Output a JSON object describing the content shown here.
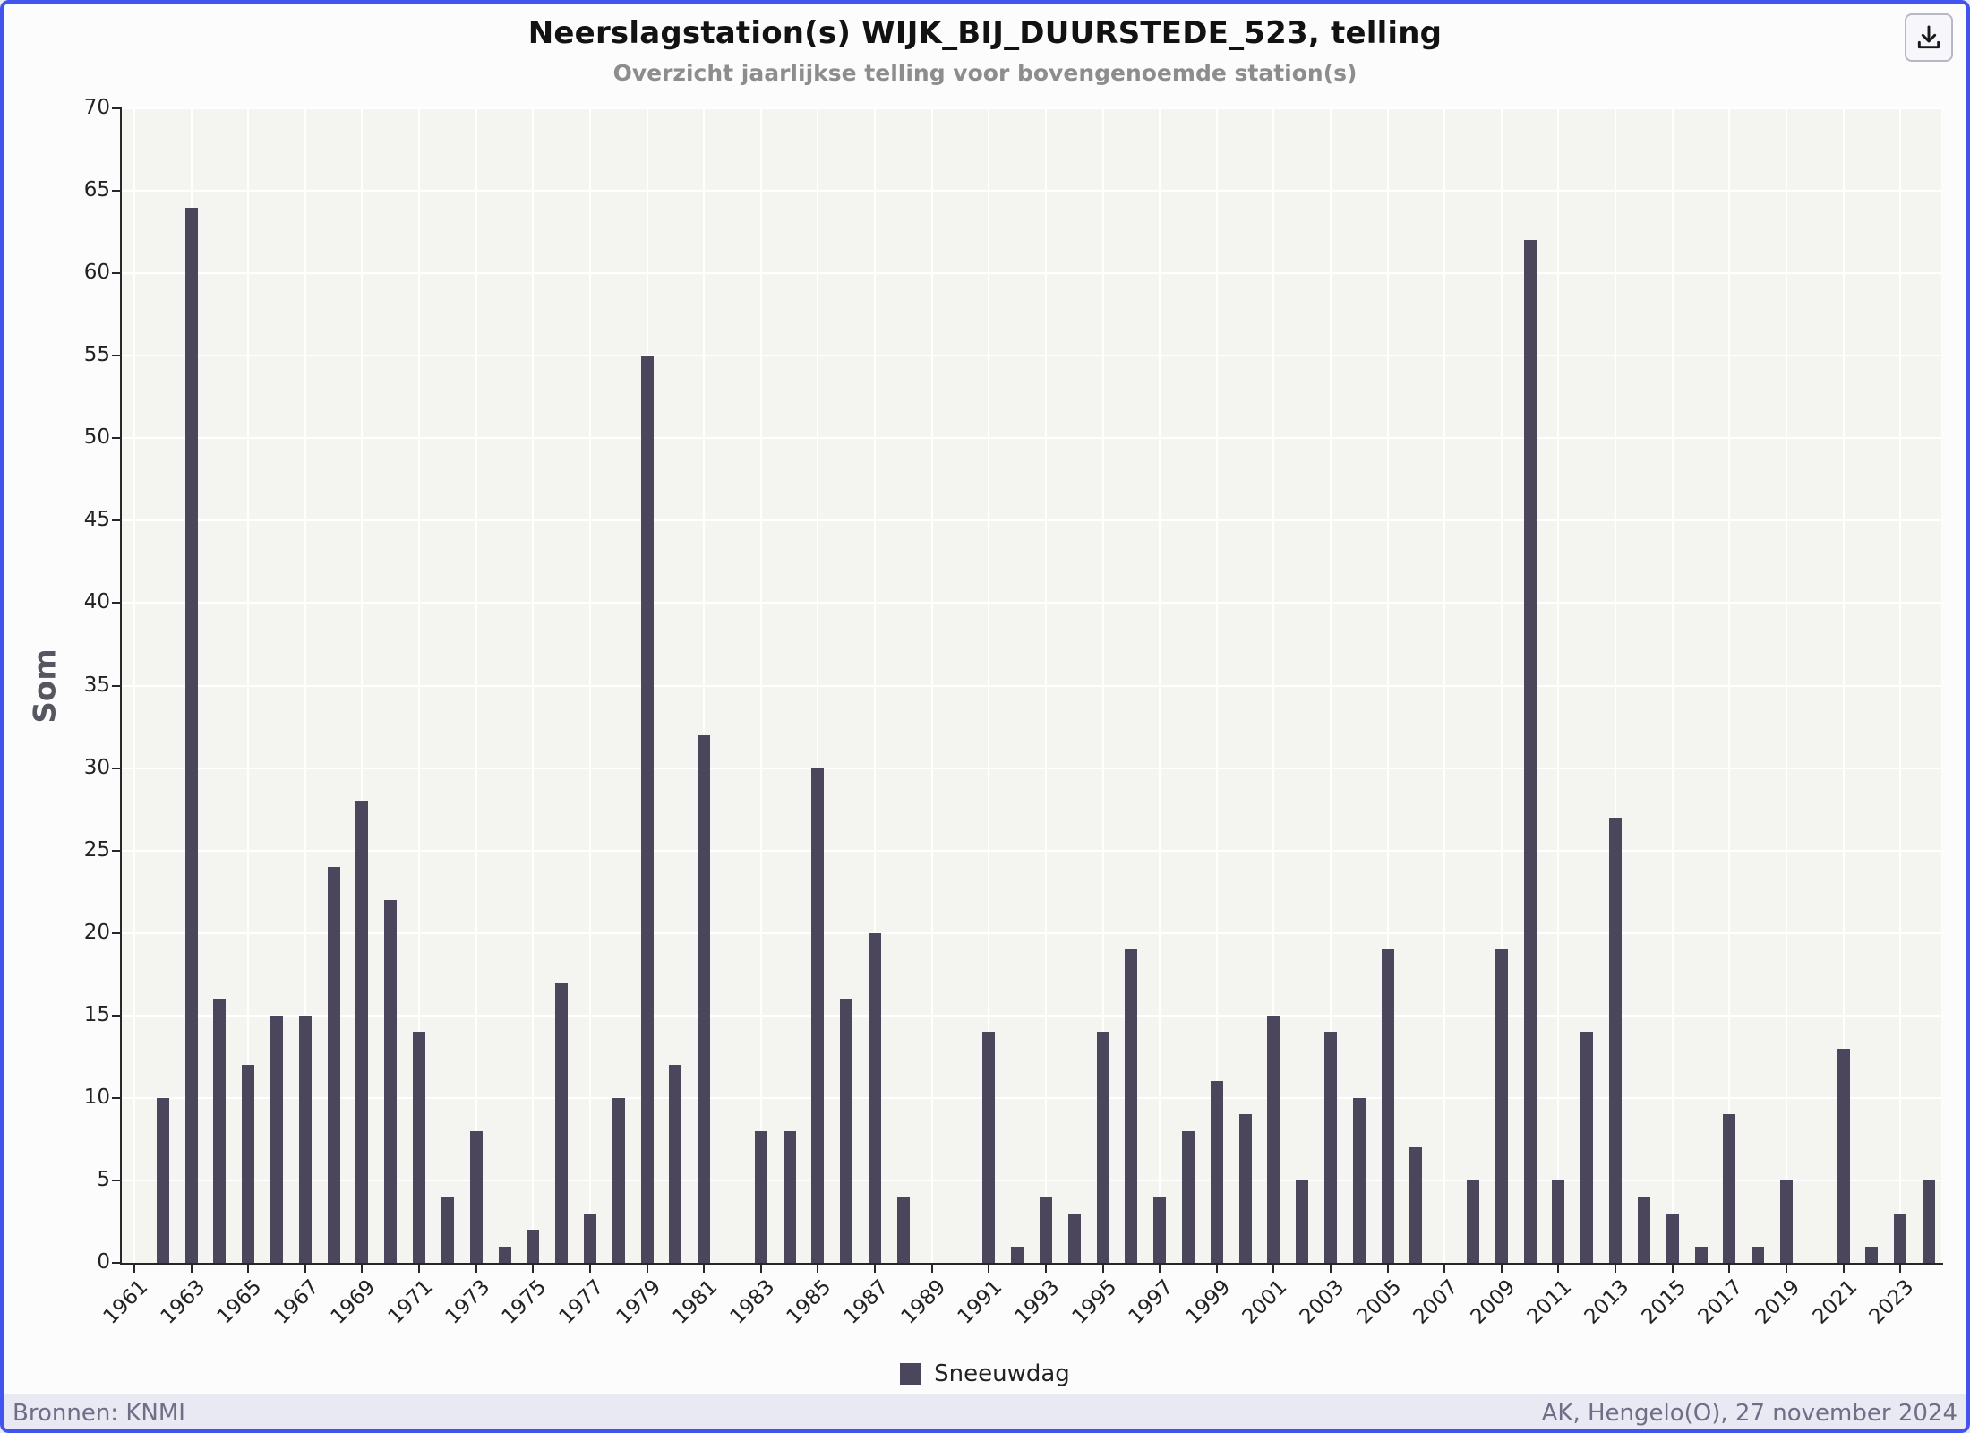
{
  "header": {
    "title": "Neerslagstation(s) WIJK_BIJ_DUURSTEDE_523, telling",
    "subtitle": "Overzicht jaarlijkse telling voor bovengenoemde station(s)"
  },
  "toolbar": {
    "download_button_icon": "download-icon"
  },
  "chart_data": {
    "type": "bar",
    "title": "Neerslagstation(s) WIJK_BIJ_DUURSTEDE_523, telling",
    "subtitle": "Overzicht jaarlijkse telling voor bovengenoemde station(s)",
    "xlabel": "",
    "ylabel": "Som",
    "ylim": [
      0,
      70
    ],
    "yticks": [
      0,
      5,
      10,
      15,
      20,
      25,
      30,
      35,
      40,
      45,
      50,
      55,
      60,
      65,
      70
    ],
    "grid": true,
    "legend_position": "bottom",
    "series_name": "Sneeuwdag",
    "x": [
      1961,
      1962,
      1963,
      1964,
      1965,
      1966,
      1967,
      1968,
      1969,
      1970,
      1971,
      1972,
      1973,
      1974,
      1975,
      1976,
      1977,
      1978,
      1979,
      1980,
      1981,
      1982,
      1983,
      1984,
      1985,
      1986,
      1987,
      1988,
      1989,
      1990,
      1991,
      1992,
      1993,
      1994,
      1995,
      1996,
      1997,
      1998,
      1999,
      2000,
      2001,
      2002,
      2003,
      2004,
      2005,
      2006,
      2007,
      2008,
      2009,
      2010,
      2011,
      2012,
      2013,
      2014,
      2015,
      2016,
      2017,
      2018,
      2019,
      2020,
      2021,
      2022,
      2023,
      2024
    ],
    "values": [
      0,
      10,
      64,
      16,
      12,
      15,
      15,
      24,
      28,
      22,
      14,
      4,
      8,
      1,
      2,
      17,
      3,
      10,
      55,
      12,
      32,
      0,
      8,
      8,
      30,
      16,
      20,
      4,
      0,
      0,
      14,
      1,
      4,
      3,
      14,
      19,
      4,
      8,
      11,
      9,
      15,
      5,
      14,
      10,
      19,
      7,
      0,
      5,
      19,
      62,
      5,
      14,
      27,
      4,
      3,
      1,
      9,
      1,
      5,
      0,
      13,
      1,
      3,
      5
    ],
    "x_tick_labels": [
      "1961",
      "1963",
      "1965",
      "1967",
      "1969",
      "1971",
      "1973",
      "1975",
      "1977",
      "1979",
      "1981",
      "1983",
      "1985",
      "1987",
      "1989",
      "1991",
      "1993",
      "1995",
      "1997",
      "1999",
      "2001",
      "2003",
      "2005",
      "2007",
      "2009",
      "2011",
      "2013",
      "2015",
      "2017",
      "2019",
      "2021",
      "2023"
    ]
  },
  "legend": {
    "label": "Sneeuwdag"
  },
  "footer": {
    "left": "Bronnen: KNMI",
    "right": "AK, Hengelo(O), 27 november 2024"
  },
  "colors": {
    "bar": "#4b465c",
    "frame_border": "#4254ef",
    "plot_bg": "#f4f4f0",
    "grid": "#ffffff",
    "page_bg": "#e9e9f4",
    "title_text": "#121212",
    "subtitle_text": "#8d8d8d",
    "footer_text": "#6e6e86"
  }
}
